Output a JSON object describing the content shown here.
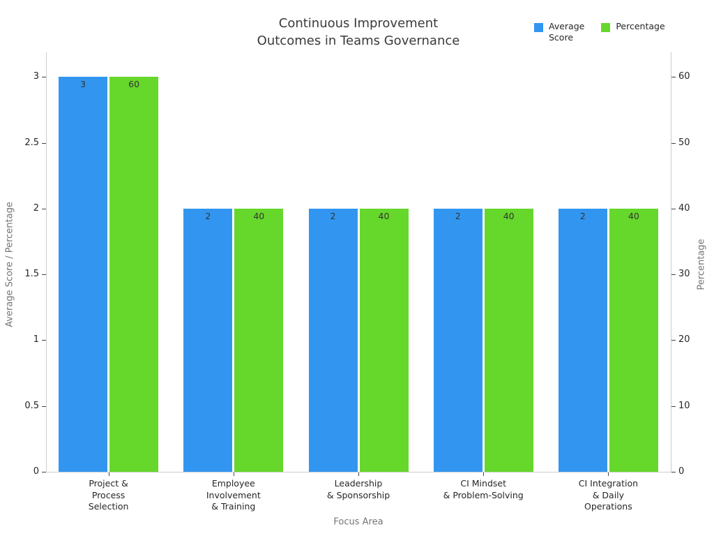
{
  "title": "Continuous Improvement\nOutcomes in Teams Governance",
  "legend": {
    "items": [
      {
        "label": "Average\nScore",
        "color": "#3296f0"
      },
      {
        "label": "Percentage",
        "color": "#66d72b"
      }
    ]
  },
  "chart_data": {
    "type": "bar",
    "title": "Continuous Improvement Outcomes in Teams Governance",
    "xlabel": "Focus Area",
    "ylabel_left": "Average Score / Percentage",
    "ylabel_right": "Percentage",
    "categories": [
      "Project &\nProcess\nSelection",
      "Employee\nInvolvement\n& Training",
      "Leadership\n& Sponsorship",
      "CI Mindset\n& Problem-Solving",
      "CI Integration\n& Daily\nOperations"
    ],
    "series": [
      {
        "name": "Average Score",
        "axis": "left",
        "color": "#3296f0",
        "values": [
          3,
          2,
          2,
          2,
          2
        ]
      },
      {
        "name": "Percentage",
        "axis": "right",
        "color": "#66d72b",
        "values": [
          60,
          40,
          40,
          40,
          40
        ]
      }
    ],
    "bar_labels_shown": true,
    "left_ticks": [
      0,
      0.5,
      1,
      1.5,
      2,
      2.5,
      3
    ],
    "right_ticks": [
      0,
      10,
      20,
      30,
      40,
      50,
      60
    ],
    "ylim_left": [
      0,
      3.1875
    ],
    "ylim_right": [
      0,
      63.75
    ],
    "grid": false,
    "legend_position": "top-right",
    "colors": {
      "axis_line": "#cccccc",
      "tick_mark": "#444444",
      "tick_label": "#262626",
      "axis_title": "#757575",
      "chart_title": "#3a3a3a",
      "bar_label": "#333333",
      "background": "#ffffff"
    }
  }
}
